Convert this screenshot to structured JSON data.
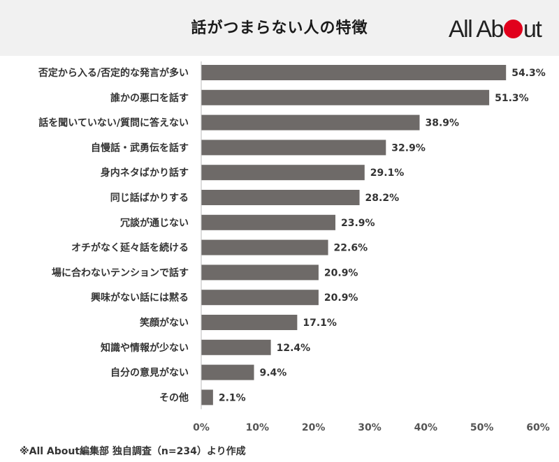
{
  "header": {
    "title": "話がつまらない人の特徴",
    "logo_text_before": "All Ab",
    "logo_text_after": "ut",
    "logo_accent": "#e1001c"
  },
  "footnote": "※All About編集部 独自調査（n=234）より作成",
  "chart_data": {
    "type": "bar",
    "orientation": "horizontal",
    "categories": [
      "否定から入る/否定的な発言が多い",
      "誰かの悪口を話す",
      "話を聞いていない/質問に答えない",
      "自慢話・武勇伝を話す",
      "身内ネタばかり話す",
      "同じ話ばかりする",
      "冗談が通じない",
      "オチがなく延々話を続ける",
      "場に合わないテンションで話す",
      "興味がない話には黙る",
      "笑顔がない",
      "知識や情報が少ない",
      "自分の意見がない",
      "その他"
    ],
    "values": [
      54.3,
      51.3,
      38.9,
      32.9,
      29.1,
      28.2,
      23.9,
      22.6,
      20.9,
      20.9,
      17.1,
      12.4,
      9.4,
      2.1
    ],
    "value_labels": [
      "54.3%",
      "51.3%",
      "38.9%",
      "32.9%",
      "29.1%",
      "28.2%",
      "23.9%",
      "22.6%",
      "20.9%",
      "20.9%",
      "17.1%",
      "12.4%",
      "9.4%",
      "2.1%"
    ],
    "xlim": [
      0,
      60
    ],
    "xticks": [
      "0%",
      "10%",
      "20%",
      "30%",
      "40%",
      "50%",
      "60%"
    ],
    "bar_color": "#6e6a68",
    "grid": false
  }
}
